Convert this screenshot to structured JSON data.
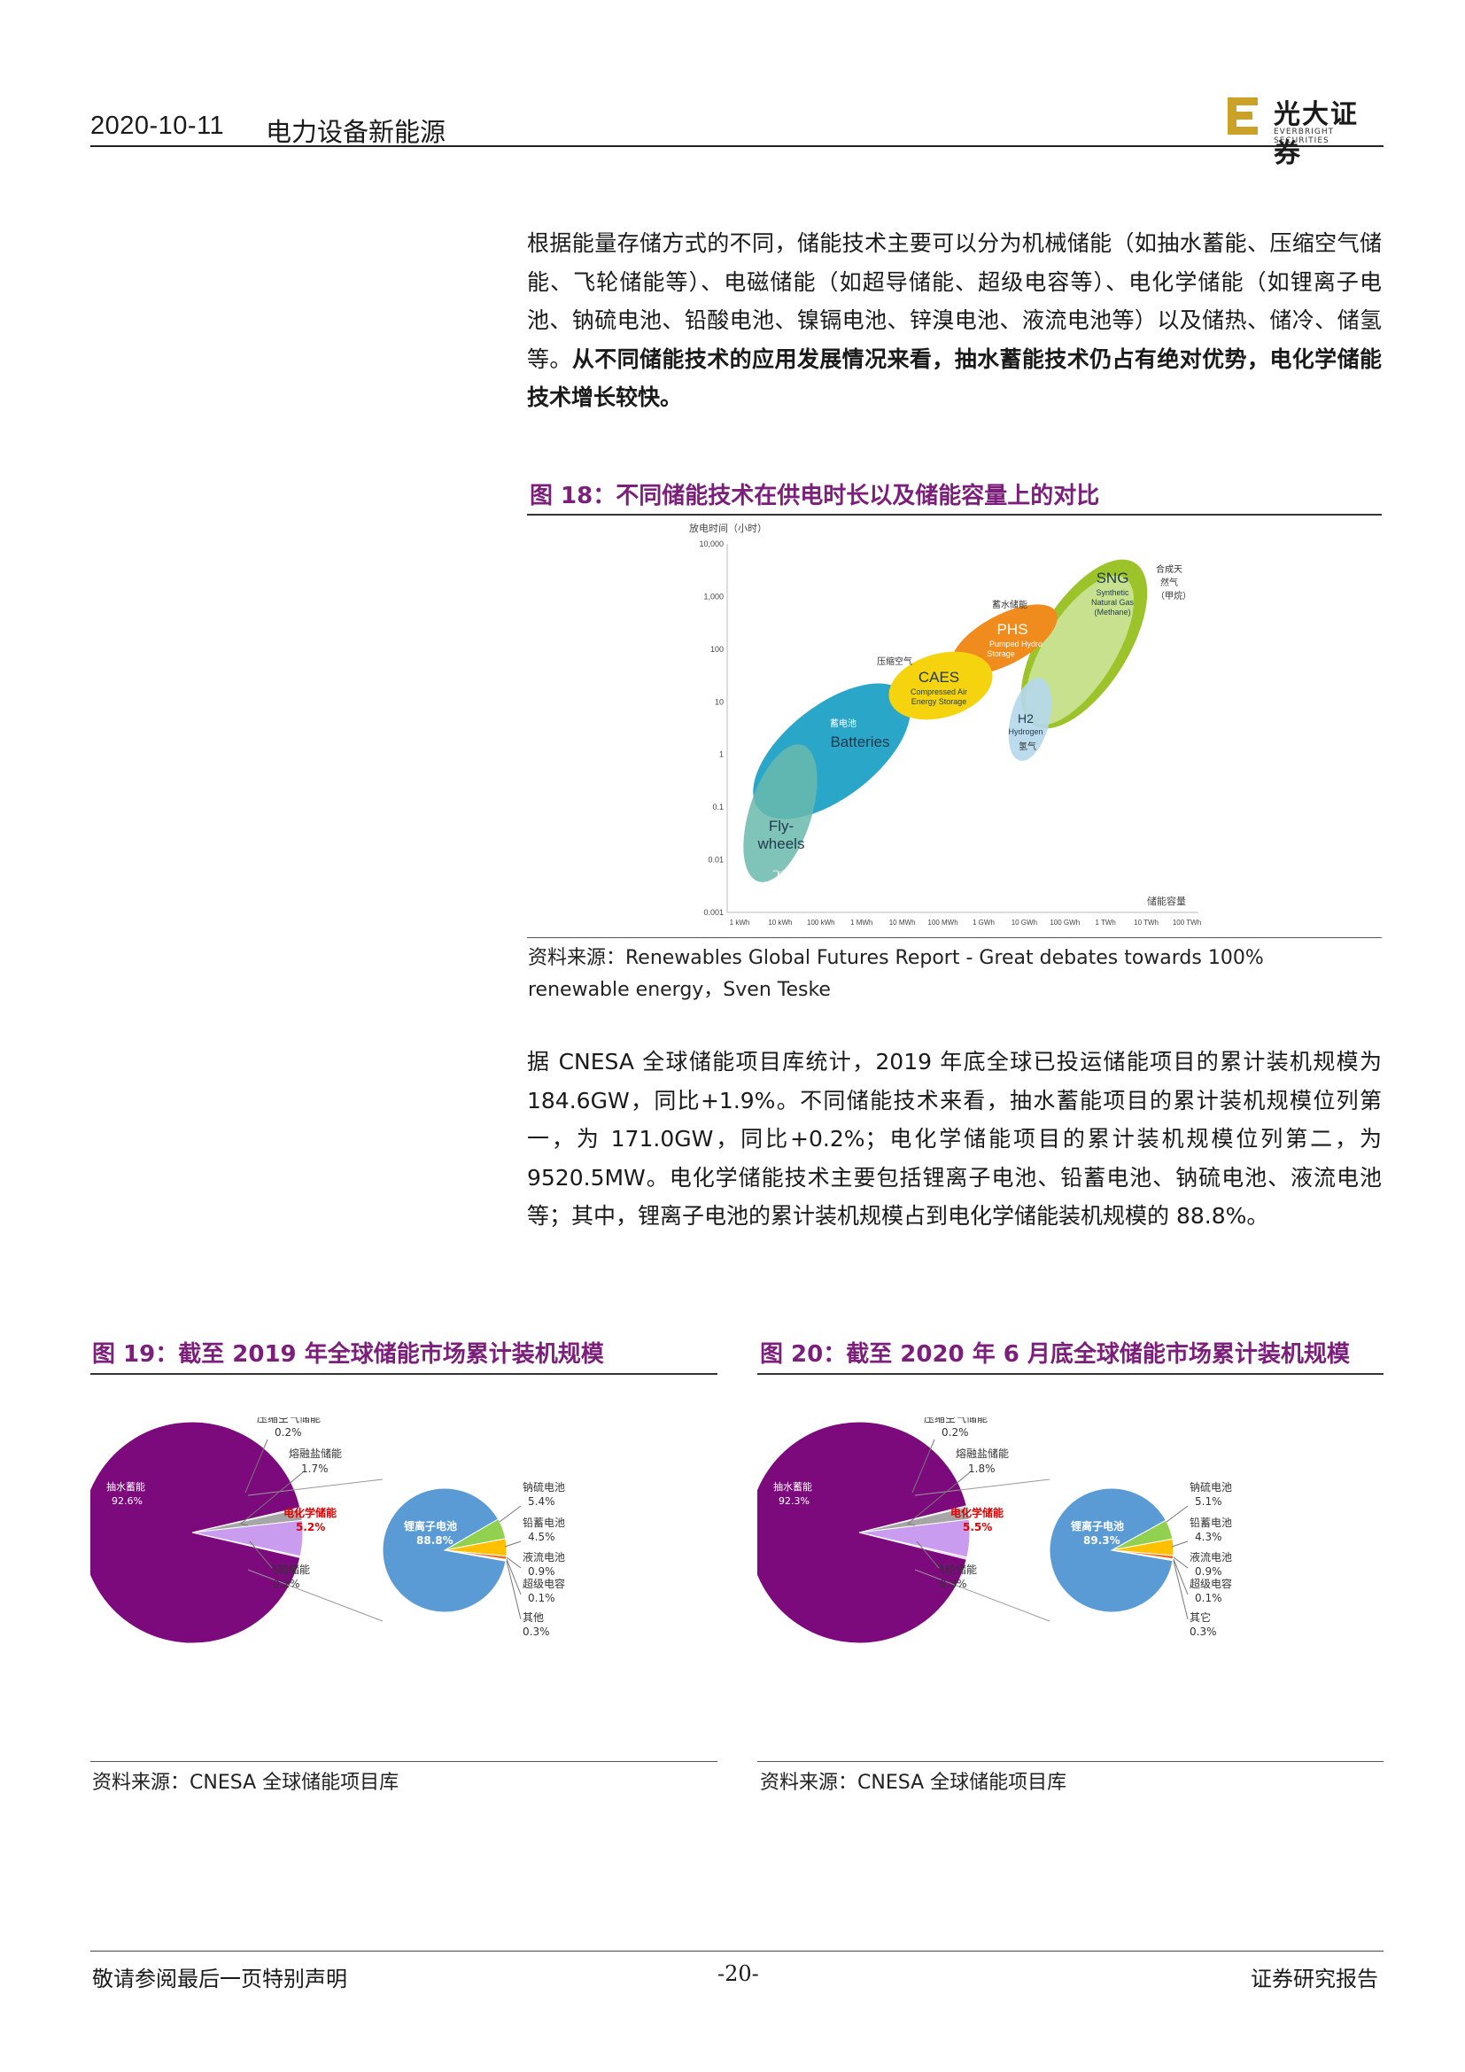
{
  "header": {
    "date": "2020-10-11",
    "category": "电力设备新能源",
    "logo_cn": "光大证券",
    "logo_en": "EVERBRIGHT SECURITIES",
    "logo_color": "#c9a227"
  },
  "para1": {
    "normal": "根据能量存储方式的不同，储能技术主要可以分为机械储能（如抽水蓄能、压缩空气储能、飞轮储能等）、电磁储能（如超导储能、超级电容等）、电化学储能（如锂离子电池、钠硫电池、铅酸电池、镍镉电池、锌溴电池、液流电池等）以及储热、储冷、储氢等。",
    "bold": "从不同储能技术的应用发展情况来看，抽水蓄能技术仍占有绝对优势，电化学储能技术增长较快。"
  },
  "fig18": {
    "title": "图 18：不同储能技术在供电时长以及储能容量上的对比",
    "source_line1": "资料来源：Renewables Global Futures Report - Great debates towards 100%",
    "source_line2": "renewable energy，Sven Teske",
    "y_axis_title": "放电时间（小时）",
    "x_axis_title": "储能容量",
    "y_ticks": [
      "10,000",
      "1,000",
      "100",
      "10",
      "1",
      "0.1",
      "0.01",
      "0.001"
    ],
    "x_ticks": [
      "1 kWh",
      "10 kWh",
      "100 kWh",
      "1 MWh",
      "10 MWh",
      "100 MWh",
      "1 GWh",
      "10 GWh",
      "100 GWh",
      "1 TWh",
      "10 TWh",
      "100 TWh"
    ],
    "bubbles": {
      "sng": {
        "name": "SNG",
        "sub1": "Synthetic",
        "sub2": "Natural Gas",
        "sub3": "(Methane)",
        "cn1": "合成天",
        "cn2": "然气",
        "cn3": "（甲烷）",
        "color": "#9dc32a"
      },
      "phs": {
        "name": "PHS",
        "sub1": "Pumped Hydro",
        "sub2": "Storage",
        "cn": "蓄水储能",
        "color": "#f08c1e"
      },
      "caes": {
        "name": "CAES",
        "sub1": "Compressed Air",
        "sub2": "Energy Storage",
        "cn": "压缩空气",
        "color": "#f5d40f"
      },
      "h2": {
        "name": "H2",
        "sub1": "Hydrogen",
        "cn": "氢气",
        "color": "#b5d8ec"
      },
      "batteries": {
        "name": "Batteries",
        "cn": "蓄电池",
        "color": "#2aa6c9"
      },
      "flywheels": {
        "name1": "Fly-",
        "name2": "wheels",
        "cn": "飞轮",
        "color": "#6ab8ad"
      }
    }
  },
  "para2": "据 CNESA 全球储能项目库统计，2019 年底全球已投运储能项目的累计装机规模为 184.6GW，同比+1.9%。不同储能技术来看，抽水蓄能项目的累计装机规模位列第一，为 171.0GW，同比+0.2%；电化学储能项目的累计装机规模位列第二，为 9520.5MW。电化学储能技术主要包括锂离子电池、铅蓄电池、钠硫电池、液流电池等；其中，锂离子电池的累计装机规模占到电化学储能装机规模的 88.8%。",
  "fig19": {
    "title": "图 19：截至 2019 年全球储能市场累计装机规模",
    "source": "资料来源：CNESA 全球储能项目库",
    "main": [
      {
        "label": "抽水蓄能",
        "value": "92.6%"
      },
      {
        "label": "压缩空气储能",
        "value": "0.2%"
      },
      {
        "label": "熔融盐储能",
        "value": "1.7%"
      },
      {
        "label": "电化学储能",
        "value": "5.2%"
      },
      {
        "label": "飞轮储能",
        "value": "0.2%"
      }
    ],
    "sub": [
      {
        "label": "锂离子电池",
        "value": "88.8%"
      },
      {
        "label": "钠硫电池",
        "value": "5.4%"
      },
      {
        "label": "铅蓄电池",
        "value": "4.5%"
      },
      {
        "label": "液流电池",
        "value": "0.9%"
      },
      {
        "label": "超级电容",
        "value": "0.1%"
      },
      {
        "label": "其他",
        "value": "0.3%"
      }
    ]
  },
  "fig20": {
    "title": "图 20：截至 2020 年 6 月底全球储能市场累计装机规模",
    "source": "资料来源：CNESA 全球储能项目库",
    "main": [
      {
        "label": "抽水蓄能",
        "value": "92.3%"
      },
      {
        "label": "压缩空气储能",
        "value": "0.2%"
      },
      {
        "label": "熔融盐储能",
        "value": "1.8%"
      },
      {
        "label": "电化学储能",
        "value": "5.5%"
      },
      {
        "label": "飞轮储能",
        "value": "0.3%"
      }
    ],
    "sub": [
      {
        "label": "锂离子电池",
        "value": "89.3%"
      },
      {
        "label": "钠硫电池",
        "value": "5.1%"
      },
      {
        "label": "铅蓄电池",
        "value": "4.3%"
      },
      {
        "label": "液流电池",
        "value": "0.9%"
      },
      {
        "label": "超级电容",
        "value": "0.1%"
      },
      {
        "label": "其它",
        "value": "0.3%"
      }
    ]
  },
  "pie_colors": {
    "pumped": "#7d0a7d",
    "caes": "#8c8c8c",
    "molten": "#a6a6a6",
    "electro": "#c99cf0",
    "flywheel": "#dcc8f0",
    "li": "#5b9bd5",
    "nas": "#92d050",
    "lead": "#ffc000",
    "flow": "#f07020",
    "cap": "#a0a0a0",
    "other": "#d0d0d0",
    "electro_label": "#e00000"
  },
  "footer": {
    "left": "敬请参阅最后一页特别声明",
    "page": "-20-",
    "right": "证券研究报告"
  }
}
